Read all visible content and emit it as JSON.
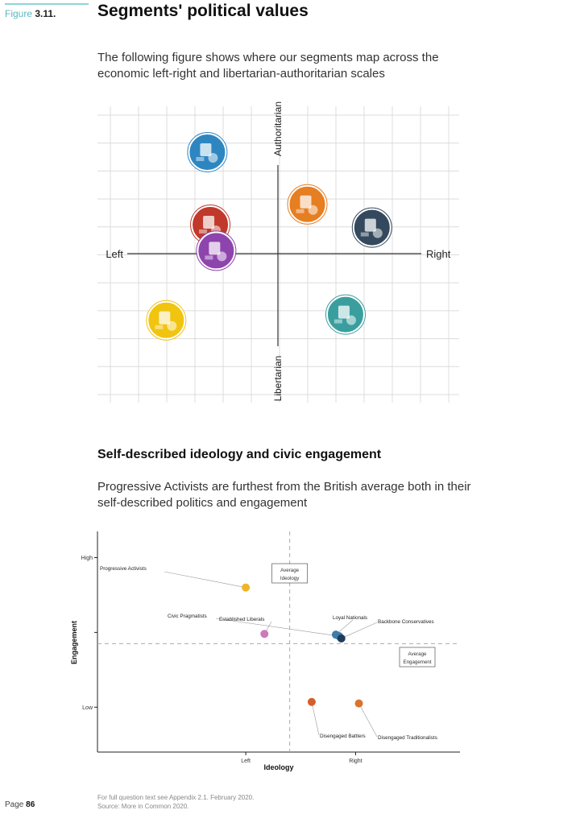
{
  "header": {
    "figure_prefix": "Figure",
    "figure_number": "3.11.",
    "title": "Segments' political values",
    "intro": "The following figure shows where our segments map across the economic left-right and libertarian-authoritarian scales"
  },
  "values_map": {
    "axis_left": "Left",
    "axis_right": "Right",
    "axis_top": "Authoritarian",
    "axis_bottom": "Libertarian",
    "segments": [
      {
        "icon": "progressive-activists-icon",
        "color": "#2e86c1",
        "x": -2.4,
        "y": 3.5
      },
      {
        "icon": "civic-pragmatists-icon",
        "color": "#c0392b",
        "x": -2.3,
        "y": 1.0
      },
      {
        "icon": "established-liberals-icon",
        "color": "#8e44ad",
        "x": -2.1,
        "y": 0.1
      },
      {
        "icon": "loyal-nationals-icon",
        "color": "#e67e22",
        "x": 1.0,
        "y": 1.7
      },
      {
        "icon": "backbone-conservatives-icon",
        "color": "#34495e",
        "x": 3.2,
        "y": 0.9
      },
      {
        "icon": "disengaged-traditionalists-icon",
        "color": "#3a9e9e",
        "x": 2.3,
        "y": -2.1
      },
      {
        "icon": "disengaged-battlers-icon",
        "color": "#f1c40f",
        "x": -3.8,
        "y": -2.3
      }
    ]
  },
  "section2": {
    "title": "Self-described ideology and civic engagement",
    "intro": "Progressive Activists are furthest from the British average both in their self-described politics and engagement"
  },
  "chart_data": {
    "type": "scatter",
    "xlabel": "Ideology",
    "ylabel": "Engagement",
    "x_ticks": [
      "Left",
      "Right"
    ],
    "y_ticks": [
      "High",
      "Low"
    ],
    "xlim": [
      -1.35,
      1.95
    ],
    "ylim": [
      -1.6,
      1.35
    ],
    "average_ideology_x": 0.4,
    "average_engagement_y": -0.15,
    "average_ideology_label": "Average\nIdeology",
    "average_engagement_label": "Average\nEngagement",
    "points": [
      {
        "name": "Progressive Activists",
        "x": 0,
        "y": 0.6,
        "color": "#f0b429"
      },
      {
        "name": "Civic Pragmatists",
        "x": 0.85,
        "y": -0.05,
        "color": "#3c7dac"
      },
      {
        "name": "Established Liberals",
        "x": 0.17,
        "y": -0.02,
        "color": "#cc7ab9"
      },
      {
        "name": "Loyal Nationals",
        "x": 0.82,
        "y": -0.03,
        "color": "#3c7dac"
      },
      {
        "name": "Backbone Conservatives",
        "x": 0.87,
        "y": -0.08,
        "color": "#1f3c5a"
      },
      {
        "name": "Disengaged Battlers",
        "x": 0.6,
        "y": -0.93,
        "color": "#d35f2e"
      },
      {
        "name": "Disengaged Traditionalists",
        "x": 1.03,
        "y": -0.95,
        "color": "#d9732e"
      }
    ]
  },
  "footer": {
    "note1": "For full question text see Appendix 2.1. February 2020.",
    "note2": "Source: More in Common 2020.",
    "page_prefix": "Page",
    "page_number": "86"
  }
}
